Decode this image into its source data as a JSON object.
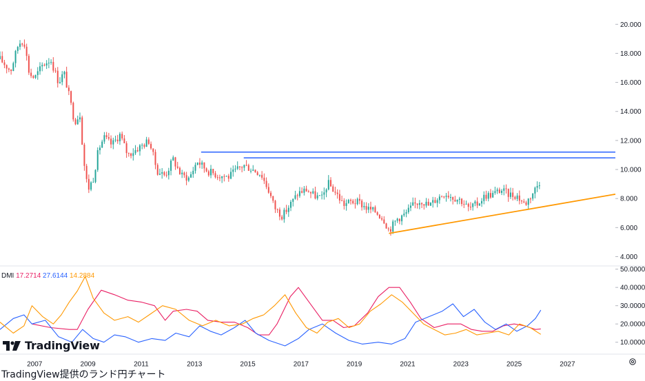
{
  "chart_data": [
    {
      "type": "candlestick",
      "xlabel": "",
      "ylabel": "",
      "x_ticks": [
        "2007",
        "2009",
        "2011",
        "2013",
        "2015",
        "2017",
        "2019",
        "2021",
        "2023",
        "2025",
        "2027"
      ],
      "xlim": [
        2005.7,
        2028.8
      ],
      "ylim": [
        3.5,
        21.2
      ],
      "y_ticks": [
        "20.000",
        "18.000",
        "16.000",
        "14.000",
        "12.000",
        "10.000",
        "8.000",
        "6.000",
        "4.000"
      ],
      "grid": false,
      "series": [
        {
          "values": [
            [
              2005.7,
              17.6
            ],
            [
              2006.1,
              16.8
            ],
            [
              2006.4,
              18.7
            ],
            [
              2006.6,
              18.9
            ],
            [
              2006.8,
              16.6
            ],
            [
              2007.0,
              16.3
            ],
            [
              2007.3,
              17.2
            ],
            [
              2007.6,
              17.6
            ],
            [
              2007.9,
              16.0
            ],
            [
              2008.1,
              16.7
            ],
            [
              2008.3,
              15.0
            ],
            [
              2008.5,
              13.3
            ],
            [
              2008.7,
              13.8
            ],
            [
              2008.85,
              10.5
            ],
            [
              2009.0,
              8.6
            ],
            [
              2009.2,
              9.4
            ],
            [
              2009.4,
              11.4
            ],
            [
              2009.6,
              12.2
            ],
            [
              2009.9,
              11.7
            ],
            [
              2010.2,
              12.4
            ],
            [
              2010.5,
              11.0
            ],
            [
              2010.9,
              11.5
            ],
            [
              2011.3,
              12.0
            ],
            [
              2011.6,
              9.9
            ],
            [
              2011.9,
              9.6
            ],
            [
              2012.2,
              10.7
            ],
            [
              2012.5,
              9.6
            ],
            [
              2012.8,
              9.4
            ],
            [
              2013.1,
              10.6
            ],
            [
              2013.5,
              9.9
            ],
            [
              2013.9,
              9.6
            ],
            [
              2014.3,
              9.5
            ],
            [
              2014.6,
              10.0
            ],
            [
              2014.85,
              10.3
            ],
            [
              2015.2,
              10.0
            ],
            [
              2015.5,
              9.7
            ],
            [
              2015.8,
              8.5
            ],
            [
              2016.0,
              7.4
            ],
            [
              2016.3,
              6.8
            ],
            [
              2016.6,
              7.6
            ],
            [
              2016.9,
              8.4
            ],
            [
              2017.2,
              8.6
            ],
            [
              2017.5,
              8.2
            ],
            [
              2017.8,
              8.0
            ],
            [
              2018.0,
              9.1
            ],
            [
              2018.3,
              8.4
            ],
            [
              2018.6,
              7.6
            ],
            [
              2018.9,
              7.8
            ],
            [
              2019.2,
              7.7
            ],
            [
              2019.5,
              7.3
            ],
            [
              2019.8,
              7.1
            ],
            [
              2020.1,
              6.6
            ],
            [
              2020.3,
              5.8
            ],
            [
              2020.6,
              6.6
            ],
            [
              2020.9,
              6.9
            ],
            [
              2021.2,
              7.5
            ],
            [
              2021.5,
              7.9
            ],
            [
              2021.8,
              7.5
            ],
            [
              2022.1,
              8.0
            ],
            [
              2022.4,
              8.4
            ],
            [
              2022.7,
              8.1
            ],
            [
              2023.0,
              7.9
            ],
            [
              2023.3,
              7.3
            ],
            [
              2023.6,
              7.6
            ],
            [
              2023.9,
              8.2
            ],
            [
              2024.2,
              8.3
            ],
            [
              2024.5,
              8.6
            ],
            [
              2024.8,
              8.3
            ],
            [
              2025.1,
              8.2
            ],
            [
              2025.4,
              7.6
            ],
            [
              2025.7,
              8.4
            ],
            [
              2026.0,
              9.3
            ]
          ]
        }
      ],
      "annotations": [
        {
          "type": "hline",
          "y": 11.2,
          "x_start": 2013.25,
          "x_end": 2028.8,
          "color": "#2962ff"
        },
        {
          "type": "hline",
          "y": 10.8,
          "x_start": 2014.85,
          "x_end": 2028.8,
          "color": "#2962ff"
        },
        {
          "type": "trendline",
          "points": [
            [
              2020.3,
              5.6
            ],
            [
              2028.8,
              8.3
            ]
          ],
          "color": "#ff9800"
        }
      ],
      "colors": {
        "up": "#26a69a",
        "down": "#ef5350"
      }
    },
    {
      "type": "line",
      "title": "DMI",
      "xlim": [
        2005.7,
        2028.8
      ],
      "ylim": [
        5,
        51
      ],
      "y_ticks": [
        "50.0000",
        "40.0000",
        "30.0000",
        "20.0000",
        "10.0000"
      ],
      "legend_placement": "top-left",
      "series": [
        {
          "name": "17.2714",
          "color": "#e91e63",
          "values": [
            [
              2006.9,
              20
            ],
            [
              2007.6,
              18
            ],
            [
              2008.3,
              17
            ],
            [
              2008.6,
              17
            ],
            [
              2009.0,
              28
            ],
            [
              2009.5,
              38.5
            ],
            [
              2010.0,
              36
            ],
            [
              2010.5,
              33
            ],
            [
              2011.0,
              32
            ],
            [
              2011.5,
              30
            ],
            [
              2011.9,
              22
            ],
            [
              2012.2,
              27
            ],
            [
              2012.7,
              28
            ],
            [
              2013.1,
              27
            ],
            [
              2013.5,
              22
            ],
            [
              2014.0,
              21
            ],
            [
              2014.5,
              21
            ],
            [
              2015.0,
              18
            ],
            [
              2015.4,
              14
            ],
            [
              2015.8,
              14
            ],
            [
              2016.1,
              20
            ],
            [
              2016.6,
              35
            ],
            [
              2016.9,
              40
            ],
            [
              2017.4,
              30
            ],
            [
              2017.8,
              22
            ],
            [
              2018.2,
              22
            ],
            [
              2018.6,
              18
            ],
            [
              2019.0,
              19
            ],
            [
              2019.5,
              26
            ],
            [
              2019.9,
              35
            ],
            [
              2020.3,
              40
            ],
            [
              2020.7,
              40
            ],
            [
              2021.1,
              32
            ],
            [
              2021.5,
              23
            ],
            [
              2022.0,
              18
            ],
            [
              2022.5,
              20
            ],
            [
              2023.0,
              20
            ],
            [
              2023.4,
              17
            ],
            [
              2023.8,
              16
            ],
            [
              2024.2,
              16
            ],
            [
              2024.6,
              19
            ],
            [
              2025.0,
              20
            ],
            [
              2025.4,
              19
            ],
            [
              2025.8,
              17
            ],
            [
              2026.0,
              17.3
            ]
          ]
        },
        {
          "name": "27.6144",
          "color": "#2962ff",
          "values": [
            [
              2005.7,
              17
            ],
            [
              2006.2,
              23
            ],
            [
              2006.6,
              25
            ],
            [
              2006.9,
              20
            ],
            [
              2007.4,
              22
            ],
            [
              2007.9,
              13
            ],
            [
              2008.4,
              10
            ],
            [
              2008.8,
              17
            ],
            [
              2009.2,
              12
            ],
            [
              2009.6,
              10
            ],
            [
              2010.0,
              14
            ],
            [
              2010.4,
              13
            ],
            [
              2010.9,
              10
            ],
            [
              2011.4,
              12
            ],
            [
              2011.9,
              11
            ],
            [
              2012.3,
              15
            ],
            [
              2012.8,
              13
            ],
            [
              2013.2,
              19
            ],
            [
              2013.6,
              16
            ],
            [
              2014.0,
              14
            ],
            [
              2014.5,
              18
            ],
            [
              2014.9,
              22
            ],
            [
              2015.3,
              15
            ],
            [
              2015.8,
              11
            ],
            [
              2016.4,
              8
            ],
            [
              2016.9,
              12
            ],
            [
              2017.3,
              17
            ],
            [
              2017.8,
              20
            ],
            [
              2018.3,
              15
            ],
            [
              2018.8,
              11
            ],
            [
              2019.3,
              9
            ],
            [
              2019.9,
              10
            ],
            [
              2020.4,
              9
            ],
            [
              2020.9,
              12
            ],
            [
              2021.3,
              21
            ],
            [
              2021.8,
              24
            ],
            [
              2022.3,
              27
            ],
            [
              2022.7,
              31
            ],
            [
              2023.1,
              24
            ],
            [
              2023.5,
              28
            ],
            [
              2023.9,
              21
            ],
            [
              2024.3,
              17
            ],
            [
              2024.7,
              20
            ],
            [
              2025.1,
              16
            ],
            [
              2025.5,
              19
            ],
            [
              2025.8,
              23
            ],
            [
              2026.0,
              27.6
            ]
          ]
        },
        {
          "name": "14.2884",
          "color": "#ff9800",
          "values": [
            [
              2005.7,
              21
            ],
            [
              2006.2,
              15
            ],
            [
              2006.6,
              19
            ],
            [
              2006.9,
              30
            ],
            [
              2007.3,
              24
            ],
            [
              2007.7,
              20
            ],
            [
              2008.0,
              25
            ],
            [
              2008.3,
              32
            ],
            [
              2008.6,
              38
            ],
            [
              2008.9,
              46
            ],
            [
              2009.2,
              34
            ],
            [
              2009.6,
              26
            ],
            [
              2010.0,
              22
            ],
            [
              2010.5,
              24
            ],
            [
              2010.9,
              21
            ],
            [
              2011.3,
              25
            ],
            [
              2011.8,
              30
            ],
            [
              2012.3,
              28
            ],
            [
              2012.8,
              22
            ],
            [
              2013.3,
              19
            ],
            [
              2013.8,
              22
            ],
            [
              2014.3,
              19
            ],
            [
              2014.8,
              20
            ],
            [
              2015.2,
              23
            ],
            [
              2015.6,
              25
            ],
            [
              2016.0,
              30
            ],
            [
              2016.4,
              36
            ],
            [
              2016.8,
              26
            ],
            [
              2017.2,
              18
            ],
            [
              2017.6,
              15
            ],
            [
              2018.0,
              21
            ],
            [
              2018.4,
              23
            ],
            [
              2018.8,
              18
            ],
            [
              2019.2,
              20
            ],
            [
              2019.6,
              27
            ],
            [
              2020.0,
              31
            ],
            [
              2020.4,
              36
            ],
            [
              2020.8,
              32
            ],
            [
              2021.2,
              26
            ],
            [
              2021.6,
              20
            ],
            [
              2022.0,
              17
            ],
            [
              2022.4,
              14
            ],
            [
              2022.8,
              15
            ],
            [
              2023.2,
              17
            ],
            [
              2023.6,
              14
            ],
            [
              2024.0,
              15
            ],
            [
              2024.4,
              16
            ],
            [
              2024.8,
              14
            ],
            [
              2025.2,
              20
            ],
            [
              2025.6,
              18
            ],
            [
              2026.0,
              14.3
            ]
          ]
        }
      ]
    }
  ],
  "logo": {
    "text": "TradingView"
  },
  "caption": "TradingView提供のランド円チャート"
}
